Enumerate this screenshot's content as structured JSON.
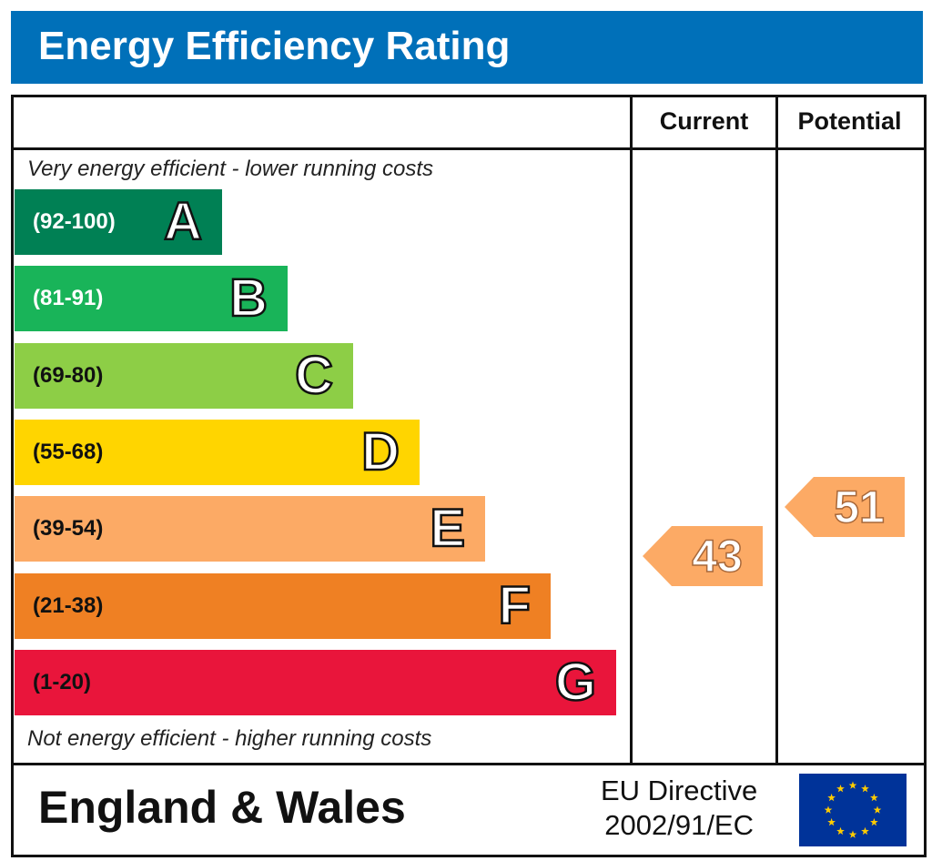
{
  "title": "Energy Efficiency Rating",
  "columns": {
    "current": "Current",
    "potential": "Potential"
  },
  "captions": {
    "top": "Very energy efficient - lower running costs",
    "bottom": "Not energy efficient - higher running costs"
  },
  "chart_data": {
    "type": "bar",
    "categories": [
      "A",
      "B",
      "C",
      "D",
      "E",
      "F",
      "G"
    ],
    "bands": [
      {
        "letter": "A",
        "range": "(92-100)",
        "min": 92,
        "max": 100,
        "color": "#008054",
        "text_color": "#ffffff"
      },
      {
        "letter": "B",
        "range": "(81-91)",
        "min": 81,
        "max": 91,
        "color": "#19b459",
        "text_color": "#ffffff"
      },
      {
        "letter": "C",
        "range": "(69-80)",
        "min": 69,
        "max": 80,
        "color": "#8dce46",
        "text_color": "#111111"
      },
      {
        "letter": "D",
        "range": "(55-68)",
        "min": 55,
        "max": 68,
        "color": "#ffd500",
        "text_color": "#111111"
      },
      {
        "letter": "E",
        "range": "(39-54)",
        "min": 39,
        "max": 54,
        "color": "#fcaa65",
        "text_color": "#111111"
      },
      {
        "letter": "F",
        "range": "(21-38)",
        "min": 21,
        "max": 38,
        "color": "#ef8023",
        "text_color": "#111111"
      },
      {
        "letter": "G",
        "range": "(1-20)",
        "min": 1,
        "max": 20,
        "color": "#e9153b",
        "text_color": "#111111"
      }
    ],
    "series": [
      {
        "name": "Current",
        "value": 43,
        "band": "E",
        "color": "#fcaa65"
      },
      {
        "name": "Potential",
        "value": 51,
        "band": "E",
        "color": "#fcaa65"
      }
    ]
  },
  "footer": {
    "region": "England & Wales",
    "directive_line1": "EU Directive",
    "directive_line2": "2002/91/EC",
    "flag_icon": "eu-flag-icon",
    "flag_color": "#003399",
    "star_color": "#ffcc00"
  }
}
